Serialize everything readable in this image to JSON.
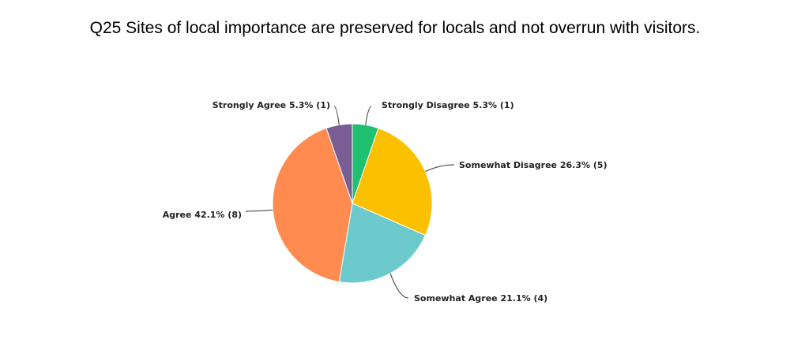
{
  "chart_data": {
    "type": "pie",
    "title": "Q25 Sites of local importance are preserved for locals and not overrun with visitors.",
    "slices": [
      {
        "label": "Strongly Disagree",
        "percent": 5.3,
        "count": 1,
        "display": "Strongly Disagree 5.3% (1)",
        "color": "#1fc070"
      },
      {
        "label": "Somewhat Disagree",
        "percent": 26.3,
        "count": 5,
        "display": "Somewhat Disagree 26.3% (5)",
        "color": "#fbc000"
      },
      {
        "label": "Somewhat Agree",
        "percent": 21.1,
        "count": 4,
        "display": "Somewhat Agree 21.1% (4)",
        "color": "#6ccacd"
      },
      {
        "label": "Agree",
        "percent": 42.1,
        "count": 8,
        "display": "Agree 42.1% (8)",
        "color": "#ff8b50"
      },
      {
        "label": "Strongly Agree",
        "percent": 5.3,
        "count": 1,
        "display": "Strongly Agree 5.3% (1)",
        "color": "#7a5e93"
      }
    ]
  }
}
